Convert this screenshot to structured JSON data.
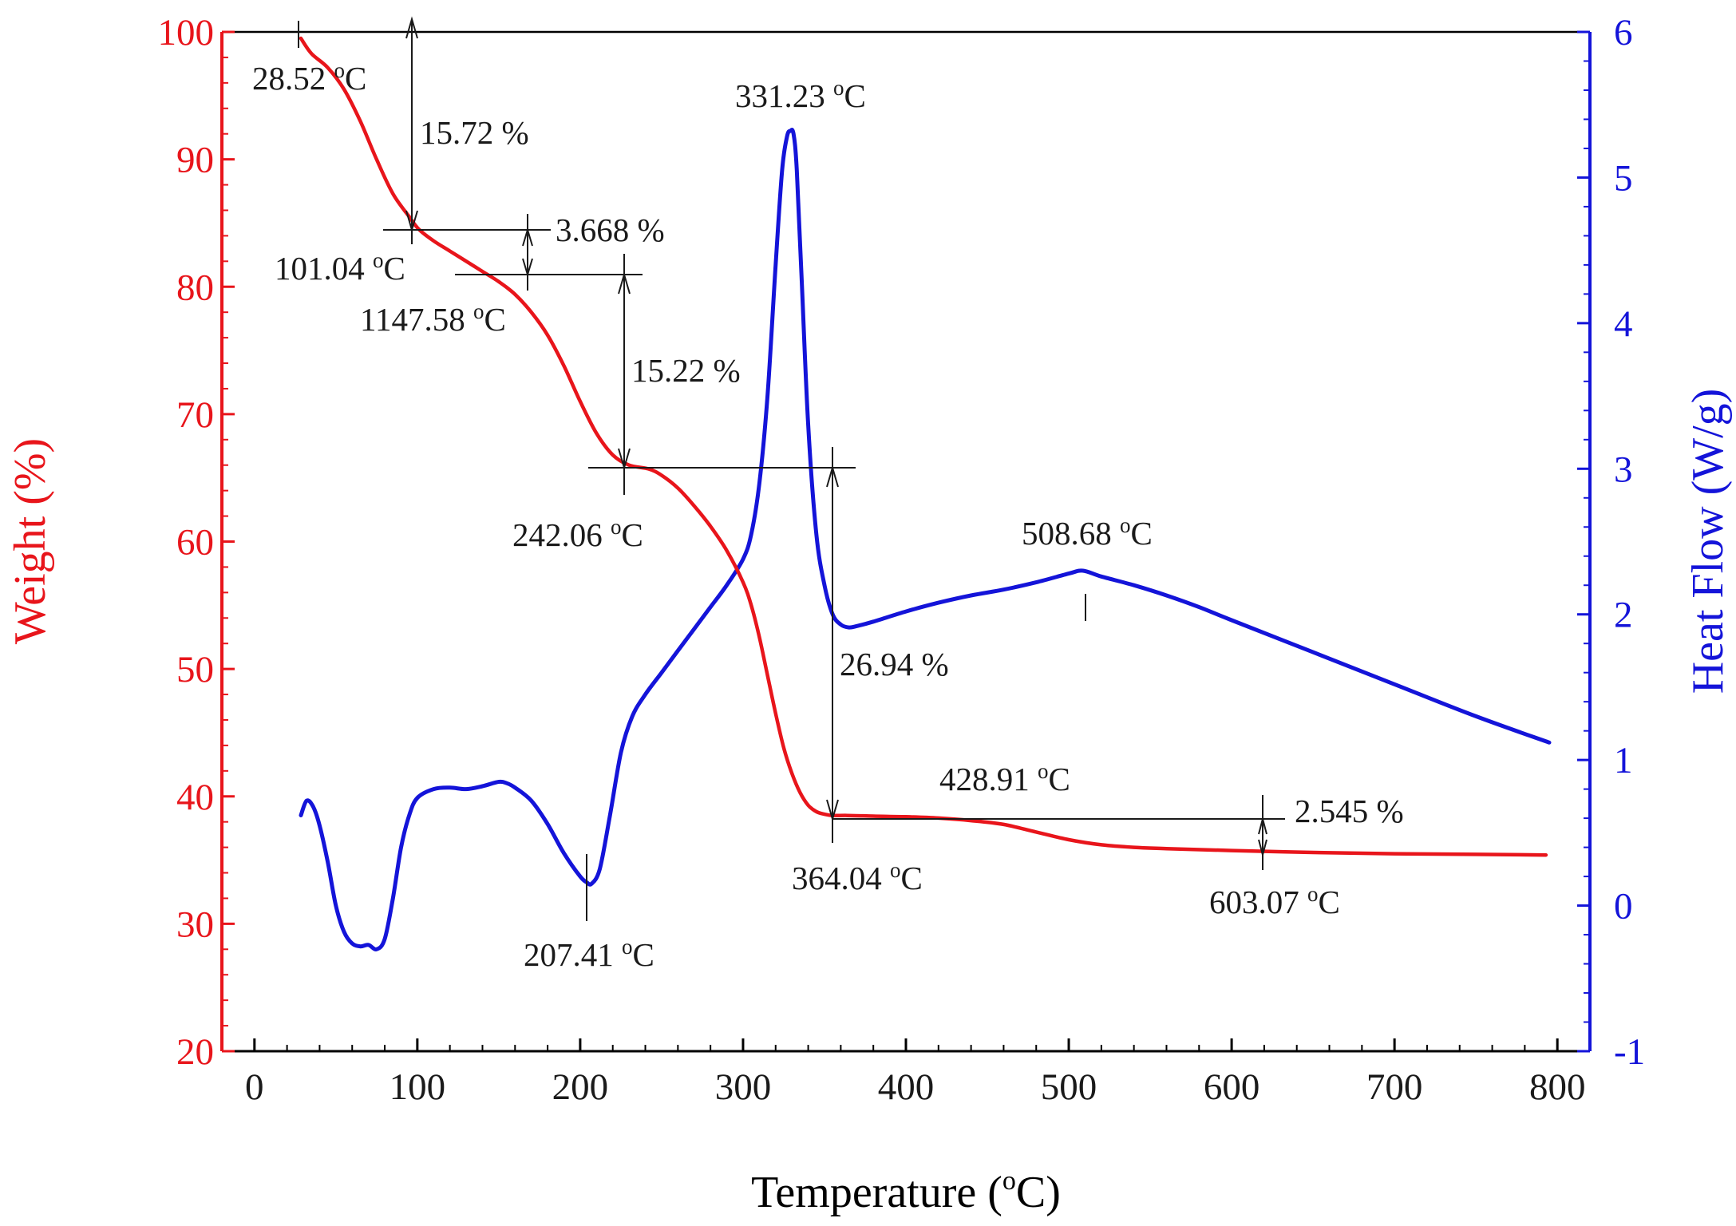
{
  "colors": {
    "weight": "#e8151b",
    "heat": "#1414d9",
    "axis": "#000000",
    "annotation": "#1a1a1a"
  },
  "chart_data": {
    "type": "line",
    "xlabel": "Temperature (°C)",
    "xlabel_parts": {
      "pre": "Temperature (",
      "sup": "o",
      "post": "C)"
    },
    "ylabel_left": "Weight (%)",
    "ylabel_right": "Heat Flow (W/g)",
    "xlim": [
      -20,
      820
    ],
    "ylim_left": [
      20,
      100
    ],
    "ylim_right": [
      -1,
      6
    ],
    "x_ticks": [
      0,
      100,
      200,
      300,
      400,
      500,
      600,
      700,
      800
    ],
    "y_left_ticks": [
      20,
      30,
      40,
      50,
      60,
      70,
      80,
      90,
      100
    ],
    "y_right_ticks": [
      -1,
      0,
      1,
      2,
      3,
      4,
      5,
      6
    ],
    "series": [
      {
        "name": "Weight (%)",
        "axis": "left",
        "x": [
          28.5,
          35,
          45,
          55,
          65,
          75,
          85,
          95,
          101,
          110,
          120,
          130,
          140,
          150,
          160,
          170,
          180,
          190,
          200,
          210,
          220,
          230,
          242,
          250,
          260,
          270,
          280,
          290,
          300,
          305,
          310,
          315,
          320,
          325,
          330,
          335,
          340,
          345,
          350,
          355,
          364,
          380,
          400,
          420,
          440,
          460,
          480,
          500,
          520,
          540,
          560,
          600,
          650,
          700,
          750,
          793
        ],
        "y": [
          99.5,
          98.3,
          97.2,
          95.5,
          93.0,
          90.0,
          87.3,
          85.5,
          84.5,
          83.6,
          82.8,
          82.0,
          81.2,
          80.4,
          79.4,
          78.0,
          76.2,
          73.8,
          71.0,
          68.5,
          66.8,
          66.0,
          65.7,
          65.2,
          64.2,
          62.8,
          61.2,
          59.3,
          56.8,
          55.0,
          52.5,
          49.5,
          46.5,
          43.8,
          41.8,
          40.3,
          39.3,
          38.8,
          38.6,
          38.5,
          38.5,
          38.45,
          38.4,
          38.3,
          38.1,
          37.8,
          37.2,
          36.6,
          36.2,
          36.0,
          35.9,
          35.75,
          35.6,
          35.5,
          35.45,
          35.4
        ]
      },
      {
        "name": "Heat Flow (W/g)",
        "axis": "right",
        "x": [
          28.5,
          32,
          36,
          40,
          45,
          50,
          55,
          60,
          65,
          70,
          75,
          80,
          85,
          90,
          95,
          100,
          110,
          120,
          130,
          140,
          150,
          155,
          160,
          170,
          180,
          190,
          200,
          204,
          207,
          212,
          218,
          225,
          232,
          240,
          250,
          260,
          270,
          280,
          290,
          300,
          305,
          310,
          315,
          320,
          324,
          327,
          329,
          331,
          333,
          336,
          340,
          345,
          350,
          355,
          360,
          365,
          370,
          380,
          400,
          420,
          440,
          460,
          480,
          500,
          508.7,
          520,
          540,
          560,
          580,
          600,
          650,
          700,
          750,
          795
        ],
        "y": [
          0.62,
          0.72,
          0.68,
          0.55,
          0.3,
          0.0,
          -0.18,
          -0.26,
          -0.28,
          -0.27,
          -0.3,
          -0.23,
          0.05,
          0.4,
          0.62,
          0.74,
          0.8,
          0.81,
          0.8,
          0.82,
          0.85,
          0.84,
          0.81,
          0.72,
          0.56,
          0.36,
          0.2,
          0.16,
          0.15,
          0.25,
          0.6,
          1.05,
          1.3,
          1.45,
          1.6,
          1.75,
          1.9,
          2.05,
          2.2,
          2.38,
          2.55,
          2.9,
          3.5,
          4.4,
          5.05,
          5.28,
          5.32,
          5.3,
          5.05,
          4.3,
          3.3,
          2.55,
          2.2,
          2.0,
          1.93,
          1.91,
          1.92,
          1.95,
          2.02,
          2.08,
          2.13,
          2.17,
          2.22,
          2.28,
          2.3,
          2.26,
          2.2,
          2.13,
          2.05,
          1.96,
          1.74,
          1.52,
          1.3,
          1.12
        ]
      }
    ],
    "annotations": [
      {
        "id": "a1",
        "pre": "28.52 ",
        "sup": "o",
        "post": "C",
        "x": 28.52
      },
      {
        "id": "a2",
        "text": "15.72 %"
      },
      {
        "id": "a3",
        "pre": "101.04 ",
        "sup": "o",
        "post": "C",
        "x": 101.04
      },
      {
        "id": "a4",
        "text": "3.668 %"
      },
      {
        "id": "a5",
        "pre": "1147.58 ",
        "sup": "o",
        "post": "C"
      },
      {
        "id": "a6",
        "text": "15.22 %"
      },
      {
        "id": "a7",
        "pre": "242.06 ",
        "sup": "o",
        "post": "C",
        "x": 242.06
      },
      {
        "id": "a8",
        "pre": "331.23 ",
        "sup": "o",
        "post": "C",
        "x": 331.23
      },
      {
        "id": "a9",
        "text": "26.94 %"
      },
      {
        "id": "a10",
        "pre": "508.68 ",
        "sup": "o",
        "post": "C",
        "x": 508.68
      },
      {
        "id": "a11",
        "pre": "428.91 ",
        "sup": "o",
        "post": "C",
        "x": 428.91
      },
      {
        "id": "a12",
        "text": "2.545 %"
      },
      {
        "id": "a13",
        "pre": "364.04 ",
        "sup": "o",
        "post": "C",
        "x": 364.04
      },
      {
        "id": "a14",
        "pre": "603.07 ",
        "sup": "o",
        "post": "C",
        "x": 603.07
      },
      {
        "id": "a15",
        "pre": "207.41 ",
        "sup": "o",
        "post": "C",
        "x": 207.41
      }
    ]
  }
}
